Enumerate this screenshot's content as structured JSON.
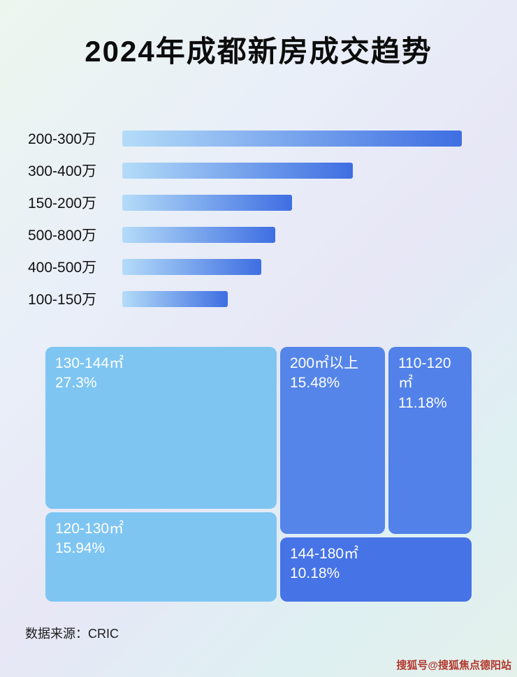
{
  "page": {
    "title": "2024年成都新房成交趋势",
    "source_label": "数据来源：CRIC",
    "watermark": "搜狐号@搜狐焦点德阳站"
  },
  "chart_data": [
    {
      "type": "bar",
      "orientation": "horizontal",
      "title": "2024年成都新房成交趋势",
      "categories": [
        "200-300万",
        "300-400万",
        "150-200万",
        "500-800万",
        "400-500万",
        "100-150万"
      ],
      "values": [
        100,
        68,
        50,
        45,
        41,
        31
      ],
      "value_note": "relative bar length, percent of longest bar (no numeric axis shown)",
      "bar_color_start": "#b4dcf8",
      "bar_color_end": "#3e6ee2",
      "grid": false,
      "legend": false
    },
    {
      "type": "treemap",
      "title": "",
      "items": [
        {
          "label": "130-144㎡",
          "value": "27.3%",
          "color": "#7ec5f2"
        },
        {
          "label": "200㎡以上",
          "value": "15.48%",
          "color": "#5585e9"
        },
        {
          "label": "110-120㎡",
          "value": "11.18%",
          "color": "#5181e9"
        },
        {
          "label": "120-130㎡",
          "value": "15.94%",
          "color": "#7ec5f2"
        },
        {
          "label": "144-180㎡",
          "value": "10.18%",
          "color": "#4673e5"
        }
      ]
    }
  ]
}
